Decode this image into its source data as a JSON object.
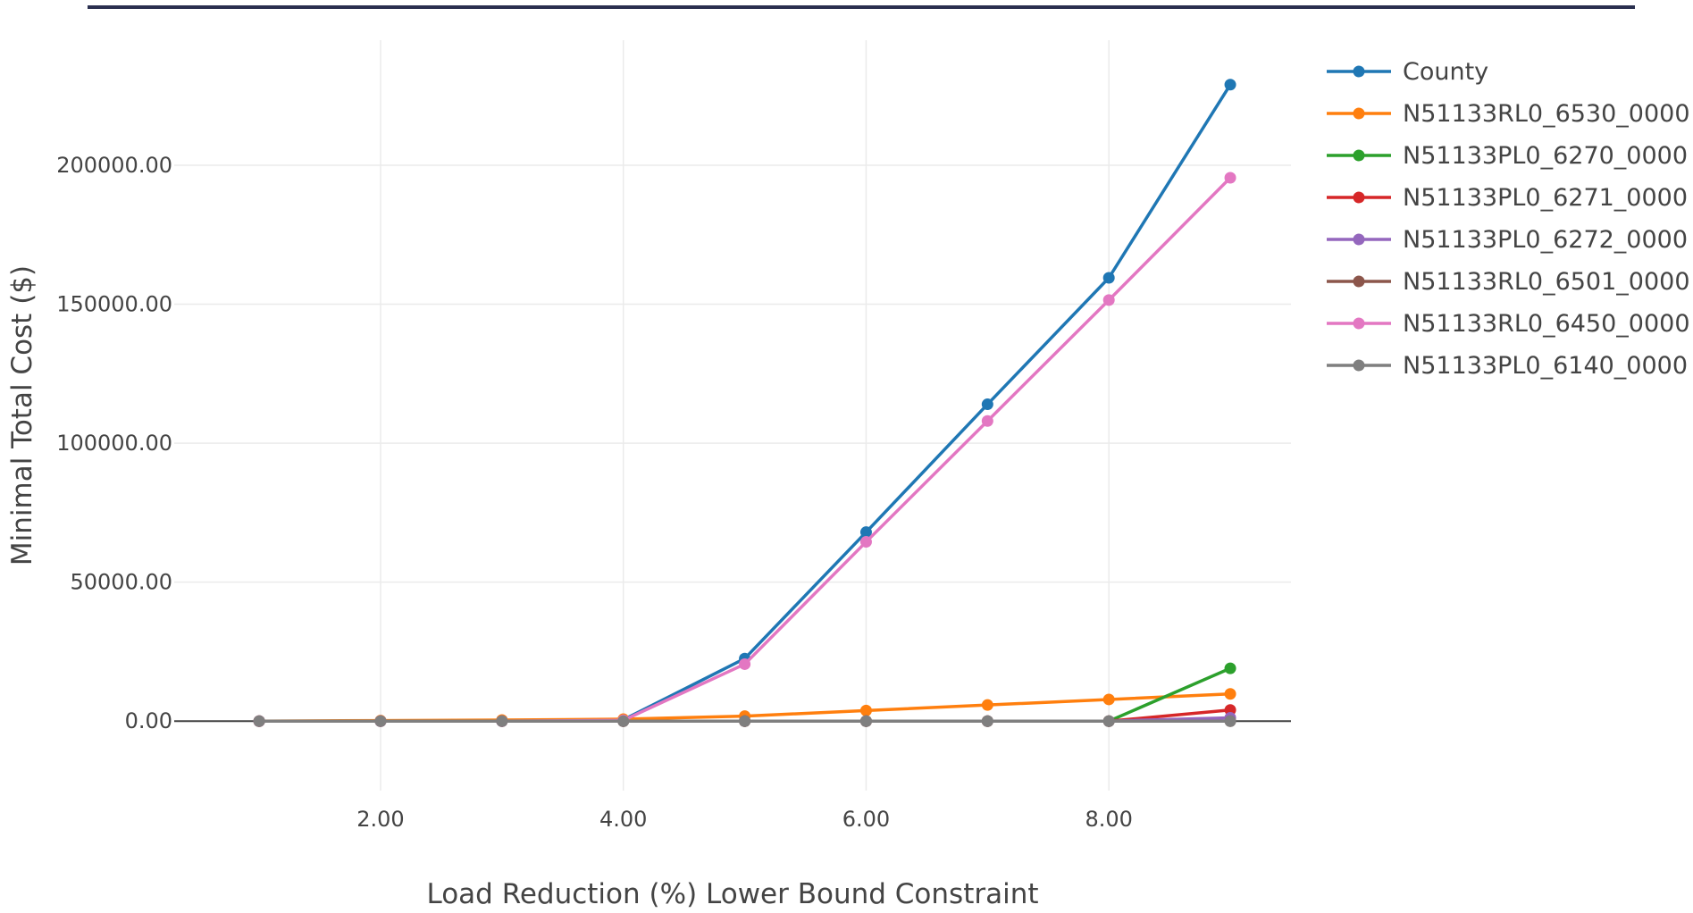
{
  "chart_data": {
    "type": "line",
    "title": "",
    "xlabel": "Load Reduction (%) Lower Bound Constraint",
    "ylabel": "Minimal Total Cost ($)",
    "x": [
      1,
      2,
      3,
      4,
      5,
      6,
      7,
      8,
      9
    ],
    "xlim": [
      0.3,
      9.5
    ],
    "ylim": [
      -25000,
      245000
    ],
    "x_ticks": [
      2,
      4,
      6,
      8
    ],
    "x_tick_labels": [
      "2.00",
      "4.00",
      "6.00",
      "8.00"
    ],
    "y_ticks": [
      0,
      50000,
      100000,
      150000,
      200000
    ],
    "y_tick_labels": [
      "0.00",
      "50000.00",
      "100000.00",
      "150000.00",
      "200000.00"
    ],
    "grid": true,
    "legend_position": "top-right",
    "series": [
      {
        "name": "County",
        "color": "#1f77b4",
        "values": [
          0,
          0,
          0,
          500,
          22500,
          68000,
          114000,
          159500,
          229000
        ]
      },
      {
        "name": "N51133RL0_6530_0000",
        "color": "#ff7f0e",
        "values": [
          0,
          200,
          400,
          700,
          1800,
          3800,
          5800,
          7800,
          9800
        ]
      },
      {
        "name": "N51133PL0_6270_0000",
        "color": "#2ca02c",
        "values": [
          0,
          0,
          0,
          0,
          0,
          0,
          0,
          0,
          19000
        ]
      },
      {
        "name": "N51133PL0_6271_0000",
        "color": "#d62728",
        "values": [
          0,
          0,
          0,
          0,
          0,
          0,
          0,
          0,
          4000
        ]
      },
      {
        "name": "N51133PL0_6272_0000",
        "color": "#9467bd",
        "values": [
          0,
          0,
          0,
          0,
          0,
          0,
          0,
          0,
          1200
        ]
      },
      {
        "name": "N51133RL0_6501_0000",
        "color": "#8c564b",
        "values": [
          0,
          0,
          0,
          0,
          0,
          0,
          0,
          0,
          0
        ]
      },
      {
        "name": "N51133RL0_6450_0000",
        "color": "#e377c2",
        "values": [
          0,
          0,
          0,
          300,
          20500,
          64500,
          108000,
          151500,
          195500
        ]
      },
      {
        "name": "N51133PL0_6140_0000",
        "color": "#7f7f7f",
        "values": [
          0,
          0,
          0,
          0,
          0,
          0,
          0,
          0,
          0
        ]
      }
    ]
  }
}
